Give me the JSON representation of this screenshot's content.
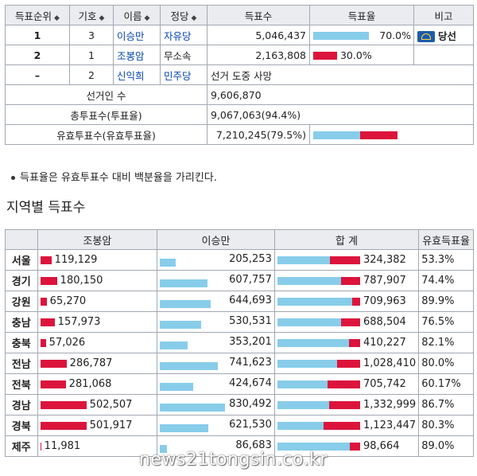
{
  "main_table": {
    "headers": [
      "득표순위",
      "기호",
      "이름",
      "정당",
      "득표수",
      "득표율",
      "비고"
    ],
    "rows": [
      {
        "rank": "1",
        "number": "3",
        "name": "이승만",
        "party": "자유당",
        "votes": "5,046,437",
        "pct_label": "70.0%",
        "pct": 70.0,
        "note": "당선"
      },
      {
        "rank": "2",
        "number": "1",
        "name": "조봉암",
        "party": "무소속",
        "votes": "2,163,808",
        "pct_label": "30.0%",
        "pct": 30.0,
        "note": ""
      },
      {
        "rank": "–",
        "number": "2",
        "name": "신익희",
        "party": "민주당",
        "votes": "선거 도중 사망",
        "pct_label": "",
        "pct": 0,
        "note": ""
      }
    ],
    "summary": [
      {
        "label": "선거인 수",
        "value": "9,606,870"
      },
      {
        "label": "총투표수(투표율)",
        "value": "9,067,063(94.4%)"
      },
      {
        "label": "유효투표수(유효투표율)",
        "value": "7,210,245(79.5%)",
        "valid_pct": 79.5
      }
    ]
  },
  "note": "득표율은 유효투표수 대비 백분율을 가리킨다.",
  "section_title": "지역별 득표수",
  "region_table": {
    "headers": [
      "",
      "조봉암",
      "이승만",
      "합     계",
      "유효득표율"
    ],
    "rows": [
      {
        "region": "서울",
        "cho": "119,129",
        "lee": "205,253",
        "total": "324,382",
        "rate": "53.3%"
      },
      {
        "region": "경기",
        "cho": "180,150",
        "lee": "607,757",
        "total": "787,907",
        "rate": "74.4%"
      },
      {
        "region": "강원",
        "cho": "65,270",
        "lee": "644,693",
        "total": "709,963",
        "rate": "89.9%"
      },
      {
        "region": "충남",
        "cho": "157,973",
        "lee": "530,531",
        "total": "688,504",
        "rate": "76.5%"
      },
      {
        "region": "충북",
        "cho": "57,026",
        "lee": "353,201",
        "total": "410,227",
        "rate": "82.1%"
      },
      {
        "region": "전남",
        "cho": "286,787",
        "lee": "741,623",
        "total": "1,028,410",
        "rate": "80.0%"
      },
      {
        "region": "전북",
        "cho": "281,068",
        "lee": "424,674",
        "total": "705,742",
        "rate": "60.17%"
      },
      {
        "region": "경남",
        "cho": "502,507",
        "lee": "830,492",
        "total": "1,332,999",
        "rate": "86.7%"
      },
      {
        "region": "경북",
        "cho": "501,917",
        "lee": "621,530",
        "total": "1,123,447",
        "rate": "80.3%"
      },
      {
        "region": "제주",
        "cho": "11,981",
        "lee": "86,683",
        "total": "98,664",
        "rate": "89.0%"
      }
    ]
  },
  "watermark": "news21tongsin.co.kr",
  "colors": {
    "lee_bar": "#87cdea",
    "cho_bar": "#dc143c",
    "header_bg": "#eaecf0",
    "link": "#0645ad"
  }
}
